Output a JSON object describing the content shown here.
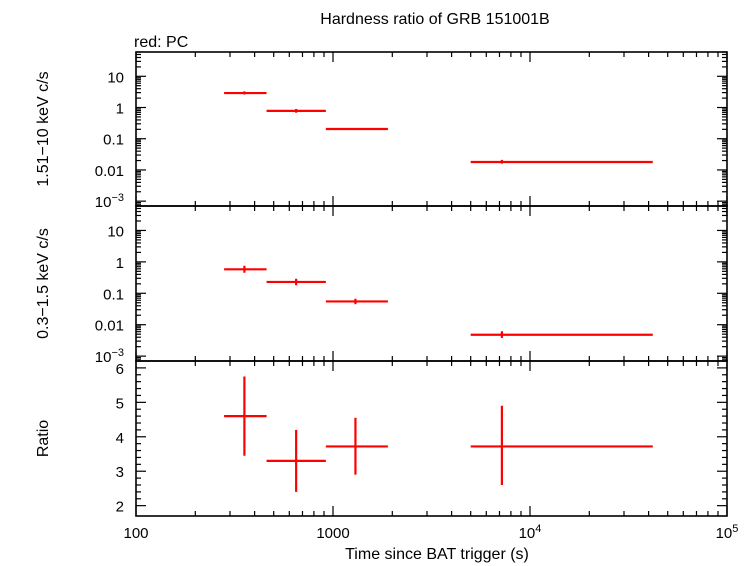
{
  "chart_data": {
    "type": "scatter",
    "title": "Hardness ratio of GRB 151001B",
    "subtitle": "red: PC",
    "xlabel": "Time since BAT trigger (s)",
    "x_scale": "log",
    "xlim": [
      100,
      100000
    ],
    "x_tick_labels": [
      {
        "value": 100,
        "base": "100",
        "exp": ""
      },
      {
        "value": 1000,
        "base": "1000",
        "exp": ""
      },
      {
        "value": 10000,
        "base": "10",
        "exp": "4"
      },
      {
        "value": 100000,
        "base": "10",
        "exp": "5"
      }
    ],
    "series_color": "#ff0000",
    "panels": [
      {
        "ylabel": "1.51−10 keV c/s",
        "y_scale": "log",
        "ylim": [
          0.0007,
          60
        ],
        "y_tick_labels": [
          {
            "value": 10,
            "base": "10",
            "exp": ""
          },
          {
            "value": 1,
            "base": "1",
            "exp": ""
          },
          {
            "value": 0.1,
            "base": "0.1",
            "exp": ""
          },
          {
            "value": 0.01,
            "base": "0.01",
            "exp": ""
          },
          {
            "value": 0.001,
            "base": "10",
            "exp": "−3"
          }
        ],
        "points": [
          {
            "x": 355,
            "xlo": 280,
            "xhi": 460,
            "y": 2.9,
            "ylo": 2.6,
            "yhi": 3.3
          },
          {
            "x": 650,
            "xlo": 460,
            "xhi": 920,
            "y": 0.78,
            "ylo": 0.68,
            "yhi": 0.9
          },
          {
            "x": 1300,
            "xlo": 920,
            "xhi": 1900,
            "y": 0.205,
            "ylo": 0.19,
            "yhi": 0.22
          },
          {
            "x": 7200,
            "xlo": 5000,
            "xhi": 42000,
            "y": 0.018,
            "ylo": 0.016,
            "yhi": 0.021
          }
        ]
      },
      {
        "ylabel": "0.3−1.5 keV c/s",
        "y_scale": "log",
        "ylim": [
          0.0007,
          60
        ],
        "y_tick_labels": [
          {
            "value": 10,
            "base": "10",
            "exp": ""
          },
          {
            "value": 1,
            "base": "1",
            "exp": ""
          },
          {
            "value": 0.1,
            "base": "0.1",
            "exp": ""
          },
          {
            "value": 0.01,
            "base": "0.01",
            "exp": ""
          },
          {
            "value": 0.001,
            "base": "10",
            "exp": "−3"
          }
        ],
        "points": [
          {
            "x": 355,
            "xlo": 280,
            "xhi": 460,
            "y": 0.58,
            "ylo": 0.45,
            "yhi": 0.75
          },
          {
            "x": 650,
            "xlo": 460,
            "xhi": 920,
            "y": 0.23,
            "ylo": 0.18,
            "yhi": 0.29
          },
          {
            "x": 1300,
            "xlo": 920,
            "xhi": 1900,
            "y": 0.055,
            "ylo": 0.045,
            "yhi": 0.067
          },
          {
            "x": 7200,
            "xlo": 5000,
            "xhi": 42000,
            "y": 0.0048,
            "ylo": 0.0038,
            "yhi": 0.0062
          }
        ]
      },
      {
        "ylabel": "Ratio",
        "y_scale": "linear",
        "ylim": [
          1.7,
          6.2
        ],
        "y_tick_labels": [
          {
            "value": 2,
            "base": "2",
            "exp": ""
          },
          {
            "value": 3,
            "base": "3",
            "exp": ""
          },
          {
            "value": 4,
            "base": "4",
            "exp": ""
          },
          {
            "value": 5,
            "base": "5",
            "exp": ""
          },
          {
            "value": 6,
            "base": "6",
            "exp": ""
          }
        ],
        "points": [
          {
            "x": 355,
            "xlo": 280,
            "xhi": 460,
            "y": 4.6,
            "ylo": 3.45,
            "yhi": 5.75
          },
          {
            "x": 650,
            "xlo": 460,
            "xhi": 920,
            "y": 3.3,
            "ylo": 2.4,
            "yhi": 4.2
          },
          {
            "x": 1300,
            "xlo": 920,
            "xhi": 1900,
            "y": 3.72,
            "ylo": 2.9,
            "yhi": 4.55
          },
          {
            "x": 7200,
            "xlo": 5000,
            "xhi": 42000,
            "y": 3.72,
            "ylo": 2.6,
            "yhi": 4.9
          }
        ]
      }
    ]
  }
}
